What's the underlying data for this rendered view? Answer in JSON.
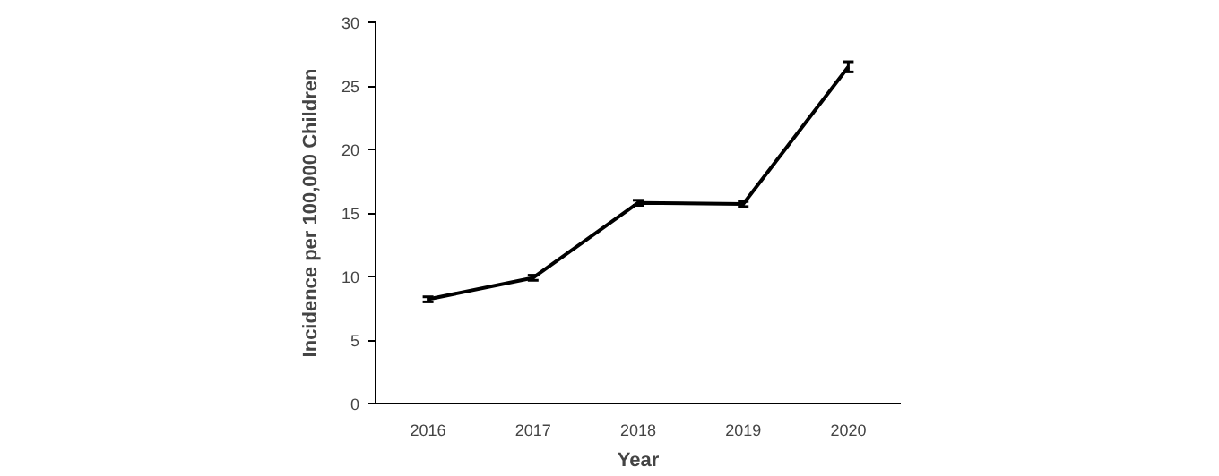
{
  "chart_data": {
    "type": "line",
    "xlabel": "Year",
    "ylabel": "Incidence per 100,000 Children",
    "categories": [
      "2016",
      "2017",
      "2018",
      "2019",
      "2020"
    ],
    "series": [
      {
        "color": "#000000",
        "values": [
          8.2,
          9.9,
          15.8,
          15.7,
          26.5
        ],
        "errors": [
          0.2,
          0.2,
          0.2,
          0.2,
          0.4
        ]
      }
    ],
    "ylim": [
      0,
      30
    ],
    "yticks": [
      0,
      5,
      10,
      15,
      20,
      25,
      30
    ],
    "grid": false,
    "marker": "none",
    "line_style": "solid"
  }
}
